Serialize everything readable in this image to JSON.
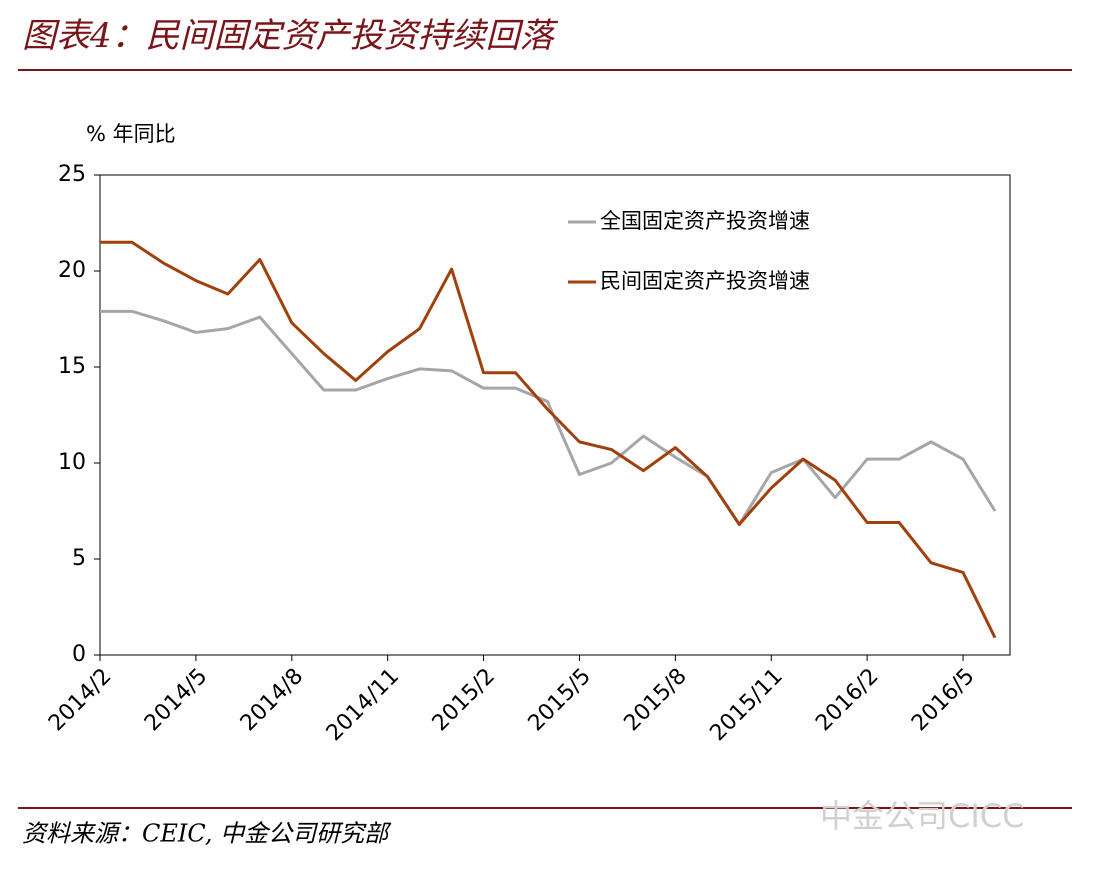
{
  "chart_data": {
    "type": "line",
    "title": "图表4：民间固定资产投资持续回落",
    "y_label": "%  年同比",
    "source": "资料来源：CEIC, 中金公司研究部",
    "watermark": "中金公司CICC",
    "categories": [
      "2014/2",
      null,
      null,
      "2014/5",
      null,
      null,
      "2014/8",
      null,
      null,
      "2014/11",
      null,
      null,
      "2015/2",
      null,
      null,
      "2015/5",
      null,
      null,
      "2015/8",
      null,
      null,
      "2015/11",
      null,
      null,
      "2016/2",
      null,
      null,
      "2016/5",
      null
    ],
    "series": [
      {
        "name": "全国固定资产投资增速",
        "color": "#a6a6a6",
        "values": [
          17.9,
          17.9,
          17.4,
          16.8,
          17.0,
          17.6,
          15.7,
          13.8,
          13.8,
          14.4,
          14.9,
          14.8,
          13.9,
          13.9,
          13.2,
          9.4,
          10.0,
          11.4,
          10.3,
          9.3,
          6.8,
          9.5,
          10.2,
          8.2,
          10.2,
          10.2,
          11.1,
          10.2,
          7.5
        ]
      },
      {
        "name": "民间固定资产投资增速",
        "color": "#a0410d",
        "values": [
          21.5,
          21.5,
          20.4,
          19.5,
          18.8,
          20.6,
          17.3,
          15.7,
          14.3,
          15.8,
          17.0,
          20.1,
          14.7,
          14.7,
          12.8,
          11.1,
          10.7,
          9.6,
          10.8,
          9.3,
          6.8,
          8.7,
          10.2,
          9.1,
          6.9,
          6.9,
          4.8,
          4.3,
          0.9
        ]
      }
    ],
    "ylim": [
      0,
      25
    ],
    "yticks": [
      0,
      5,
      10,
      15,
      20,
      25
    ],
    "grid": false,
    "legend": "upper right"
  }
}
